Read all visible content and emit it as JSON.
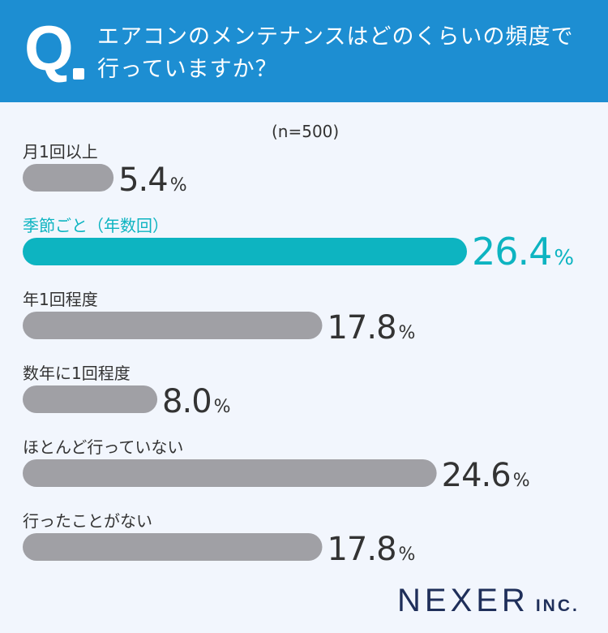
{
  "header": {
    "q_label": "Q",
    "question": "エアコンのメンテナンスはどのくらいの頻度で行っていますか？"
  },
  "sample_size": "(n=500)",
  "unit": "%",
  "colors": {
    "header_bg": "#1d8ed2",
    "bar_default": "#a0a0a5",
    "bar_highlight": "#0db4c1",
    "text_default": "#333333",
    "text_highlight": "#0db4c1"
  },
  "chart_data": {
    "type": "bar",
    "orientation": "horizontal",
    "categories": [
      "月1回以上",
      "季節ごと（年数回）",
      "年1回程度",
      "数年に1回程度",
      "ほとんど行っていない",
      "行ったことがない"
    ],
    "values": [
      5.4,
      26.4,
      17.8,
      8.0,
      24.6,
      17.8
    ],
    "value_labels": [
      "5.4",
      "26.4",
      "17.8",
      "8.0",
      "24.6",
      "17.8"
    ],
    "highlight_index": 1,
    "xlim": [
      0,
      26.4
    ],
    "grid": false
  },
  "logo": {
    "main": "NEXER",
    "sub": "INC."
  }
}
